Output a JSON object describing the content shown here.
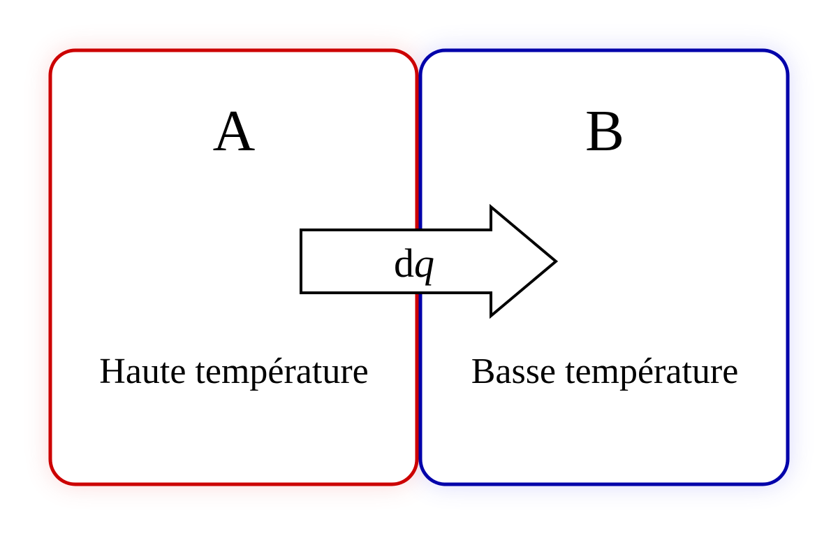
{
  "diagram": {
    "system_a": {
      "name": "A",
      "description": "Haute température",
      "color": "#cc0000",
      "glow_color": "#f26b6b"
    },
    "system_b": {
      "name": "B",
      "description": "Basse température",
      "color": "#0000aa",
      "glow_color": "#6b6bf2"
    },
    "heat_flow": {
      "symbol_d": "d",
      "symbol_q": "q",
      "direction": "A-to-B"
    }
  }
}
